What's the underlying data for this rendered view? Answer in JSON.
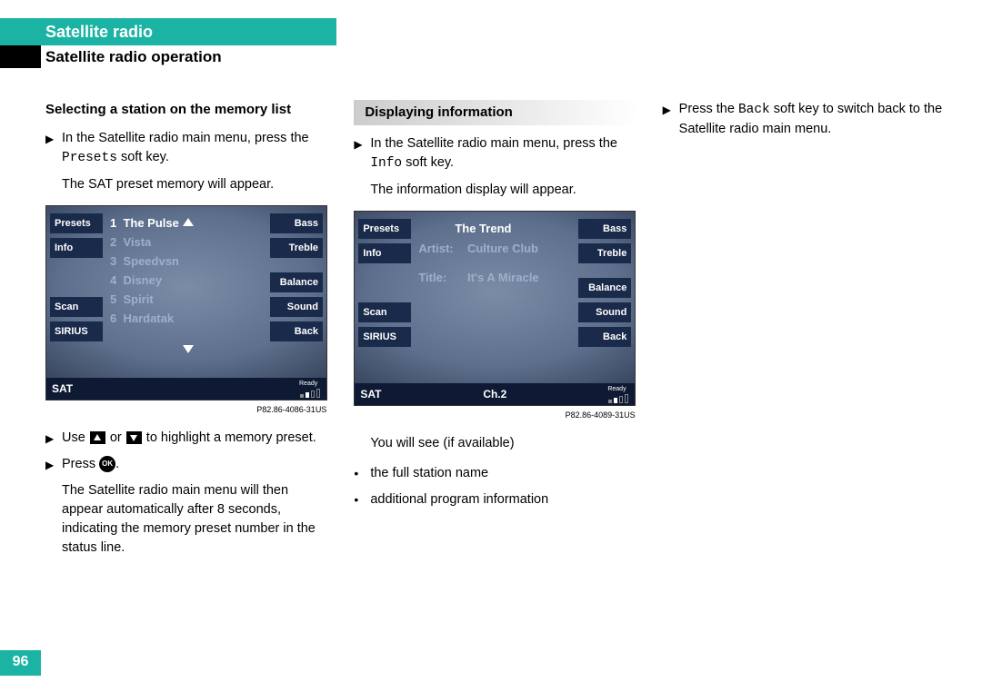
{
  "page_number": "96",
  "header_tab": "Satellite radio",
  "subtitle": "Satellite radio operation",
  "col1": {
    "title": "Selecting a station on the memory list",
    "step1_a": "In the Satellite radio main menu, press the ",
    "step1_key": "Presets",
    "step1_b": " soft key.",
    "para1": "The SAT preset memory will appear.",
    "screen": {
      "sk_l1": "Presets",
      "sk_l2": "Info",
      "sk_l3": "Scan",
      "sk_l4": "SIRIUS",
      "sk_r1": "Bass",
      "sk_r2": "Treble",
      "sk_r3": "Balance",
      "sk_r4": "Sound",
      "sk_r5": "Back",
      "presets": [
        {
          "n": "1",
          "name": "The Pulse",
          "hl": true
        },
        {
          "n": "2",
          "name": "Vista",
          "hl": false
        },
        {
          "n": "3",
          "name": "Speedvsn",
          "hl": false
        },
        {
          "n": "4",
          "name": "Disney",
          "hl": false
        },
        {
          "n": "5",
          "name": "Spirit",
          "hl": false
        },
        {
          "n": "6",
          "name": "Hardatak",
          "hl": false
        }
      ],
      "status_sat": "SAT",
      "status_ready": "Ready"
    },
    "fig": "P82.86-4086-31US",
    "step2_a": "Use ",
    "step2_b": " or ",
    "step2_c": " to highlight a memory preset.",
    "step3_a": "Press ",
    "step3_b": ".",
    "ok_label": "OK",
    "para2": "The Satellite radio main menu will then appear automatically after 8 seconds, indicating the memory preset number in the status line."
  },
  "col2": {
    "title": "Displaying information",
    "step1_a": "In the Satellite radio main menu, press the ",
    "step1_key": "Info",
    "step1_b": " soft key.",
    "para1": "The information display will appear.",
    "screen": {
      "sk_l1": "Presets",
      "sk_l2": "Info",
      "sk_l3": "Scan",
      "sk_l4": "SIRIUS",
      "sk_r1": "Bass",
      "sk_r2": "Treble",
      "sk_r3": "Balance",
      "sk_r4": "Sound",
      "sk_r5": "Back",
      "station": "The Trend",
      "artist_lbl": "Artist:",
      "artist": "Culture Club",
      "title_lbl": "Title:",
      "title_val": "It's A Miracle",
      "status_sat": "SAT",
      "status_ch": "Ch.2",
      "status_ready": "Ready"
    },
    "fig": "P82.86-4089-31US",
    "after": "You will see (if available)",
    "bullet1": "the full station name",
    "bullet2": "additional program information"
  },
  "col3": {
    "step1_a": "Press the ",
    "step1_key": "Back",
    "step1_b": " soft key to switch back to the Satellite radio main menu."
  }
}
